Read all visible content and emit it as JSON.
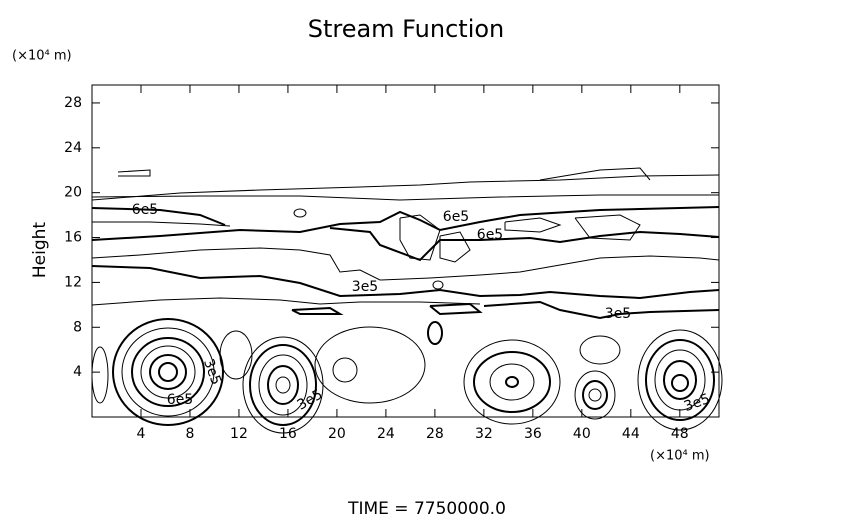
{
  "chart_data": {
    "type": "contour",
    "title": "Stream Function",
    "ylabel": "Height",
    "y_unit": "(×10⁴ m)",
    "x_unit": "(×10⁴ m)",
    "footer": "TIME = 7750000.0",
    "xlim": [
      0,
      51.2
    ],
    "ylim": [
      0,
      29.6
    ],
    "xticks": [
      4,
      8,
      12,
      16,
      20,
      24,
      28,
      32,
      36,
      40,
      44,
      48
    ],
    "yticks": [
      4,
      8,
      12,
      16,
      20,
      24,
      28
    ],
    "contour_labels": [
      "6e5",
      "6e5",
      "6e5",
      "3e5",
      "3e5",
      "3e5",
      "6e5",
      "3e5",
      "3e5"
    ]
  }
}
